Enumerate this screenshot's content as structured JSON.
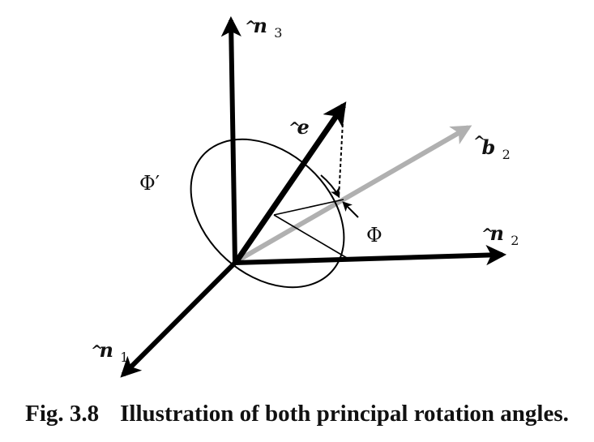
{
  "labels": {
    "n3": {
      "base": "n",
      "sub": "3"
    },
    "n2": {
      "base": "n",
      "sub": "2"
    },
    "n1": {
      "base": "n",
      "sub": "1"
    },
    "e": {
      "base": "e"
    },
    "b2": {
      "base": "b",
      "sub": "2"
    },
    "phi_prime": "Φ′",
    "phi": "Φ"
  },
  "caption": {
    "number": "Fig. 3.8",
    "text": "Illustration of both principal rotation angles."
  },
  "colors": {
    "axis": "#000000",
    "b2_axis": "#b0b0b0",
    "ellipse": "#000000"
  }
}
